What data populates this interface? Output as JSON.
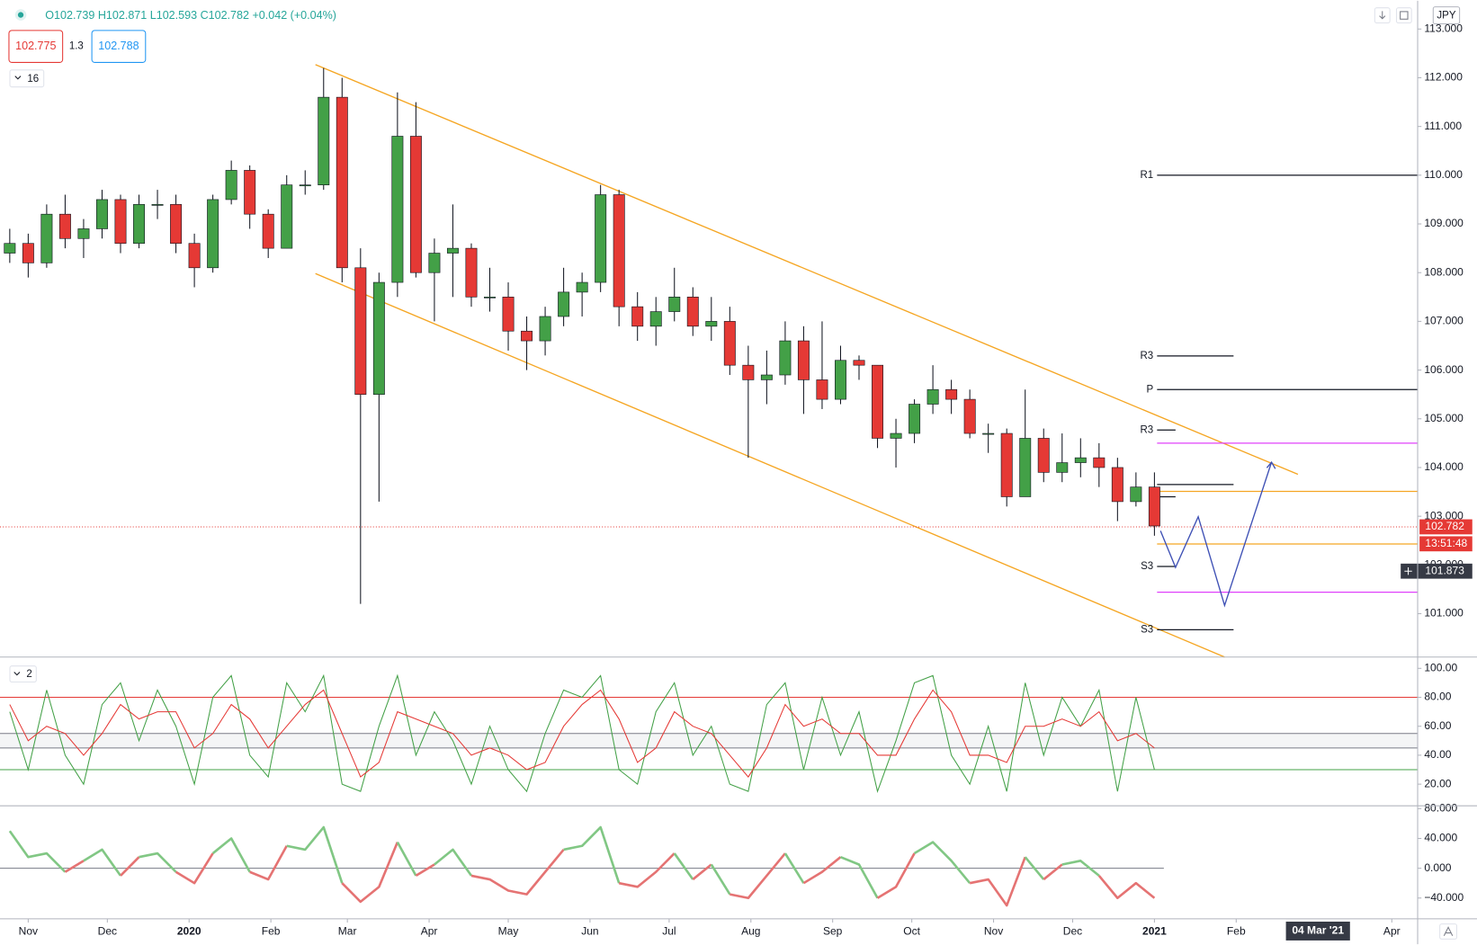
{
  "header": {
    "ohlc": "O102.739 H102.871 L102.593 C102.782 +0.042 (+0.04%)",
    "bid": "102.775",
    "spread": "1.3",
    "ask": "102.788",
    "indicators_main": "16",
    "indicators_stoch": "2",
    "currency": "JPY"
  },
  "chart_data": [
    {
      "type": "candlestick",
      "x": [
        -7,
        0,
        7,
        14,
        21,
        28,
        35,
        42,
        49,
        56,
        63,
        70,
        77,
        84,
        91,
        98,
        105,
        112,
        119,
        126,
        133,
        140,
        147,
        154,
        161,
        168,
        175,
        182,
        189,
        196,
        203,
        210,
        217,
        224,
        231,
        238,
        245,
        252,
        259,
        266,
        273,
        280,
        287,
        294,
        301,
        308,
        315,
        322,
        329,
        336,
        343,
        350,
        357,
        364,
        371,
        378,
        385,
        392,
        399,
        406,
        413,
        420,
        427
      ],
      "open": [
        108.4,
        108.6,
        108.2,
        109.2,
        108.7,
        108.9,
        109.5,
        108.6,
        109.4,
        109.4,
        108.6,
        108.1,
        109.5,
        110.1,
        109.2,
        108.5,
        109.8,
        109.8,
        111.6,
        108.1,
        105.5,
        107.8,
        110.8,
        108.0,
        108.4,
        108.5,
        107.5,
        107.5,
        106.8,
        106.6,
        107.1,
        107.6,
        107.8,
        109.6,
        107.3,
        106.9,
        107.2,
        107.5,
        106.9,
        107.0,
        106.1,
        105.8,
        105.9,
        106.6,
        105.8,
        105.4,
        106.2,
        106.1,
        104.6,
        104.7,
        105.3,
        105.6,
        105.4,
        104.7,
        104.7,
        103.4,
        104.6,
        103.9,
        104.1,
        104.2,
        104.0,
        103.3,
        103.6
      ],
      "high": [
        108.9,
        108.8,
        109.4,
        109.6,
        109.1,
        109.7,
        109.6,
        109.6,
        109.7,
        109.6,
        108.8,
        109.6,
        110.3,
        110.2,
        109.3,
        110.0,
        110.1,
        112.2,
        112.0,
        108.5,
        108.0,
        111.7,
        111.5,
        108.7,
        109.4,
        108.6,
        108.1,
        107.8,
        107.1,
        107.3,
        108.1,
        108.0,
        109.8,
        109.7,
        107.6,
        107.5,
        108.1,
        107.7,
        107.5,
        107.3,
        106.5,
        106.4,
        107.0,
        106.9,
        107.0,
        106.5,
        106.3,
        106.1,
        105.0,
        105.4,
        106.1,
        105.8,
        105.6,
        104.9,
        104.8,
        105.6,
        104.8,
        104.7,
        104.6,
        104.5,
        104.2,
        103.9,
        103.9
      ],
      "low": [
        108.2,
        107.9,
        108.1,
        108.5,
        108.3,
        108.7,
        108.4,
        108.5,
        109.1,
        108.4,
        107.7,
        108.0,
        109.4,
        108.9,
        108.3,
        108.5,
        109.6,
        109.7,
        107.8,
        101.2,
        103.3,
        107.5,
        107.9,
        107.0,
        107.5,
        107.3,
        107.2,
        106.4,
        106.0,
        106.3,
        106.9,
        107.1,
        107.6,
        106.9,
        106.6,
        106.5,
        107.0,
        106.7,
        106.6,
        105.9,
        104.2,
        105.3,
        105.7,
        105.1,
        105.2,
        105.3,
        105.8,
        104.4,
        104.0,
        104.5,
        105.1,
        105.1,
        104.6,
        104.3,
        103.2,
        103.4,
        103.7,
        103.7,
        103.8,
        103.6,
        102.9,
        103.2,
        102.6
      ],
      "close": [
        108.6,
        108.2,
        109.2,
        108.7,
        108.9,
        109.5,
        108.6,
        109.4,
        109.4,
        108.6,
        108.1,
        109.5,
        110.1,
        109.2,
        108.5,
        109.8,
        109.8,
        111.6,
        108.1,
        105.5,
        107.8,
        110.8,
        108.0,
        108.4,
        108.5,
        107.5,
        107.5,
        106.8,
        106.6,
        107.1,
        107.6,
        107.8,
        109.6,
        107.3,
        106.9,
        107.2,
        107.5,
        106.9,
        107.0,
        106.1,
        105.8,
        105.9,
        106.6,
        105.8,
        105.4,
        106.2,
        106.1,
        104.6,
        104.7,
        105.3,
        105.6,
        105.4,
        104.7,
        104.7,
        103.4,
        104.6,
        103.9,
        104.1,
        104.2,
        104.0,
        103.3,
        103.6,
        102.8
      ],
      "colors": {
        "up": "#43a047",
        "down": "#e53935",
        "wick": "#131722"
      },
      "xlim": [
        -10.7,
        526.8
      ],
      "ylim": [
        100.11,
        113.58
      ],
      "grid": false,
      "xticks": [
        {
          "value": 0,
          "label": "Nov"
        },
        {
          "value": 30,
          "label": "Dec"
        },
        {
          "value": 61,
          "label": "2020"
        },
        {
          "value": 92,
          "label": "Feb"
        },
        {
          "value": 121,
          "label": "Mar"
        },
        {
          "value": 152,
          "label": "Apr"
        },
        {
          "value": 182,
          "label": "May"
        },
        {
          "value": 213,
          "label": "Jun"
        },
        {
          "value": 243,
          "label": "Jul"
        },
        {
          "value": 274,
          "label": "Aug"
        },
        {
          "value": 305,
          "label": "Sep"
        },
        {
          "value": 335,
          "label": "Oct"
        },
        {
          "value": 366,
          "label": "Nov"
        },
        {
          "value": 396,
          "label": "Dec"
        },
        {
          "value": 427,
          "label": "2021"
        },
        {
          "value": 458,
          "label": "Feb"
        },
        {
          "value": 517,
          "label": "Apr"
        }
      ],
      "yticks": [
        {
          "value": 101,
          "label": "101.000"
        },
        {
          "value": 102,
          "label": "102.000"
        },
        {
          "value": 103,
          "label": "103.000"
        },
        {
          "value": 104,
          "label": "104.000"
        },
        {
          "value": 105,
          "label": "105.000"
        },
        {
          "value": 106,
          "label": "106.000"
        },
        {
          "value": 107,
          "label": "107.000"
        },
        {
          "value": 108,
          "label": "108.000"
        },
        {
          "value": 109,
          "label": "109.000"
        },
        {
          "value": 110,
          "label": "110.000"
        },
        {
          "value": 111,
          "label": "111.000"
        },
        {
          "value": 112,
          "label": "112.000"
        },
        {
          "value": 113,
          "label": "113.000"
        }
      ],
      "last_price": {
        "value": 102.782,
        "label": "102.782",
        "color": "#e53935"
      },
      "countdown": "13:51:48",
      "crosshair": {
        "value": 101.873,
        "label": "101.873",
        "x": 489,
        "x_label": "04 Mar '21"
      },
      "channel": [
        {
          "x": [
            108.9,
            481.4
          ],
          "y": [
            112.27,
            103.86
          ],
          "color": "#f5a623"
        },
        {
          "x": [
            108.9,
            453.6
          ],
          "y": [
            107.98,
            100.11
          ],
          "color": "#f5a623"
        }
      ],
      "levels": [
        {
          "label": "R1",
          "value": 110.0,
          "from": 428,
          "to": 526.8,
          "color": "#131722"
        },
        {
          "label": "R3",
          "value": 106.29,
          "from": 428,
          "to": 457,
          "color": "#131722"
        },
        {
          "label": "P",
          "value": 105.6,
          "from": 428,
          "to": 526.8,
          "color": "#131722"
        },
        {
          "label": "R3",
          "value": 104.77,
          "from": 428,
          "to": 435,
          "color": "#131722"
        },
        {
          "value": 103.65,
          "from": 428,
          "to": 457,
          "color": "#131722"
        },
        {
          "value": 103.4,
          "from": 428,
          "to": 435,
          "color": "#131722"
        },
        {
          "label": "S3",
          "value": 101.97,
          "from": 428,
          "to": 435,
          "color": "#131722"
        },
        {
          "label": "S3",
          "value": 100.67,
          "from": 428,
          "to": 457,
          "color": "#131722"
        },
        {
          "value": 103.51,
          "from": 428,
          "to": 526.8,
          "color": "#f5a623"
        },
        {
          "value": 102.43,
          "from": 428,
          "to": 526.8,
          "color": "#f5a623"
        },
        {
          "value": 104.5,
          "from": 428,
          "to": 526.8,
          "color": "#e040fb"
        },
        {
          "value": 101.44,
          "from": 428,
          "to": 526.8,
          "color": "#e040fb"
        }
      ],
      "projection": {
        "x": [
          429.3,
          435,
          443.6,
          453.6,
          471.4
        ],
        "y": [
          102.7,
          101.95,
          102.99,
          101.17,
          104.11
        ],
        "color": "#3f51b5"
      }
    },
    {
      "type": "line",
      "ylim": [
        5.04,
        107.8
      ],
      "yticks": [
        {
          "value": 20,
          "label": "20.00"
        },
        {
          "value": 40,
          "label": "40.00"
        },
        {
          "value": 60,
          "label": "60.00"
        },
        {
          "value": 80,
          "label": "80.00"
        },
        {
          "value": 100,
          "label": "100.00"
        }
      ],
      "series": [
        {
          "color": "#43a047",
          "values": [
            70,
            30,
            85,
            40,
            20,
            75,
            90,
            50,
            85,
            60,
            20,
            80,
            95,
            40,
            25,
            90,
            70,
            95,
            20,
            15,
            60,
            95,
            40,
            70,
            50,
            20,
            60,
            30,
            15,
            55,
            85,
            80,
            95,
            30,
            20,
            70,
            90,
            40,
            60,
            20,
            15,
            75,
            90,
            30,
            80,
            40,
            70,
            15,
            50,
            90,
            95,
            40,
            20,
            60,
            15,
            90,
            40,
            80,
            60,
            85,
            15,
            80,
            30
          ]
        },
        {
          "color": "#e53935",
          "values": [
            75,
            50,
            60,
            55,
            40,
            55,
            75,
            65,
            70,
            70,
            45,
            55,
            75,
            65,
            45,
            60,
            75,
            85,
            55,
            25,
            35,
            70,
            65,
            60,
            55,
            40,
            45,
            40,
            30,
            35,
            60,
            75,
            85,
            65,
            35,
            45,
            70,
            60,
            55,
            40,
            25,
            45,
            75,
            60,
            65,
            55,
            55,
            40,
            40,
            65,
            85,
            70,
            40,
            40,
            35,
            60,
            60,
            65,
            60,
            70,
            50,
            55,
            45
          ]
        }
      ],
      "levels": [
        {
          "value": 80,
          "color": "#e53935"
        },
        {
          "value": 55,
          "color": "#787b86"
        },
        {
          "value": 45,
          "color": "#787b86"
        },
        {
          "value": 30,
          "color": "#43a047"
        }
      ]
    },
    {
      "type": "oscillator",
      "ylim": [
        -67.9,
        83.8
      ],
      "yticks": [
        {
          "value": -40,
          "label": "−40.000"
        },
        {
          "value": 0,
          "label": "0.000"
        },
        {
          "value": 40,
          "label": "40.000"
        },
        {
          "value": 80,
          "label": "80.000"
        }
      ],
      "values": [
        50,
        15,
        20,
        -5,
        10,
        25,
        -10,
        15,
        20,
        -5,
        -20,
        20,
        40,
        -5,
        -15,
        30,
        25,
        55,
        -20,
        -45,
        -25,
        35,
        -10,
        5,
        25,
        -10,
        -15,
        -30,
        -35,
        -5,
        25,
        30,
        55,
        -20,
        -25,
        -5,
        20,
        -15,
        5,
        -35,
        -40,
        -10,
        20,
        -20,
        -5,
        15,
        5,
        -40,
        -25,
        20,
        35,
        10,
        -20,
        -15,
        -50,
        15,
        -15,
        5,
        10,
        -10,
        -40,
        -20,
        -40
      ],
      "colors": {
        "up": "#81c784",
        "down": "#e57373"
      }
    }
  ]
}
